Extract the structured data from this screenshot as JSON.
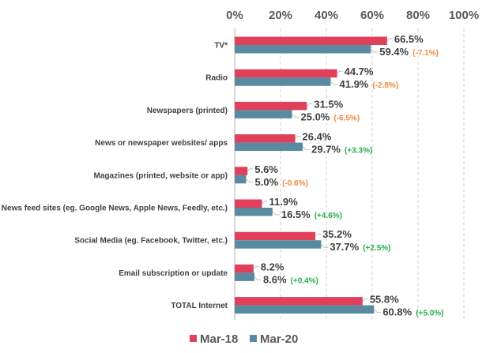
{
  "chart_data": {
    "type": "bar",
    "orientation": "horizontal",
    "categories": [
      "TV*",
      "Radio",
      "Newspapers (printed)",
      "News or newspaper websites/ apps",
      "Magazines (printed, website or app)",
      "News feed sites (eg. Google News, Apple News, Feedly, etc.)",
      "Social Media (eg. Facebook, Twitter, etc.)",
      "Email subscription or update",
      "TOTAL Internet"
    ],
    "series": [
      {
        "name": "Mar-18",
        "color": "#e0405a",
        "values": [
          66.5,
          44.7,
          31.5,
          26.4,
          5.6,
          11.9,
          35.2,
          8.2,
          55.8
        ],
        "labels": [
          "66.5%",
          "44.7%",
          "31.5%",
          "26.4%",
          "5.6%",
          "11.9%",
          "35.2%",
          "8.2%",
          "55.8%"
        ]
      },
      {
        "name": "Mar-20",
        "color": "#588aa0",
        "values": [
          59.4,
          41.9,
          25.0,
          29.7,
          5.0,
          16.5,
          37.7,
          8.6,
          60.8
        ],
        "labels": [
          "59.4%",
          "41.9%",
          "25.0%",
          "29.7%",
          "5.0%",
          "16.5%",
          "37.7%",
          "8.6%",
          "60.8%"
        ]
      }
    ],
    "changes": [
      "(-7.1%)",
      "(-2.8%)",
      "(-6.5%)",
      "(+3.3%)",
      "(-0.6%)",
      "(+4.6%)",
      "(+2.5%)",
      "(+0.4%)",
      "(+5.0%)"
    ],
    "change_colors": {
      "negative": "#f08a3c",
      "positive": "#22b04a"
    },
    "xlim": [
      0,
      100
    ],
    "xticks": [
      "0%",
      "20%",
      "40%",
      "60%",
      "80%",
      "100%"
    ],
    "xaxis_position": "top",
    "grid": "vertical dashed",
    "legend": "bottom"
  }
}
